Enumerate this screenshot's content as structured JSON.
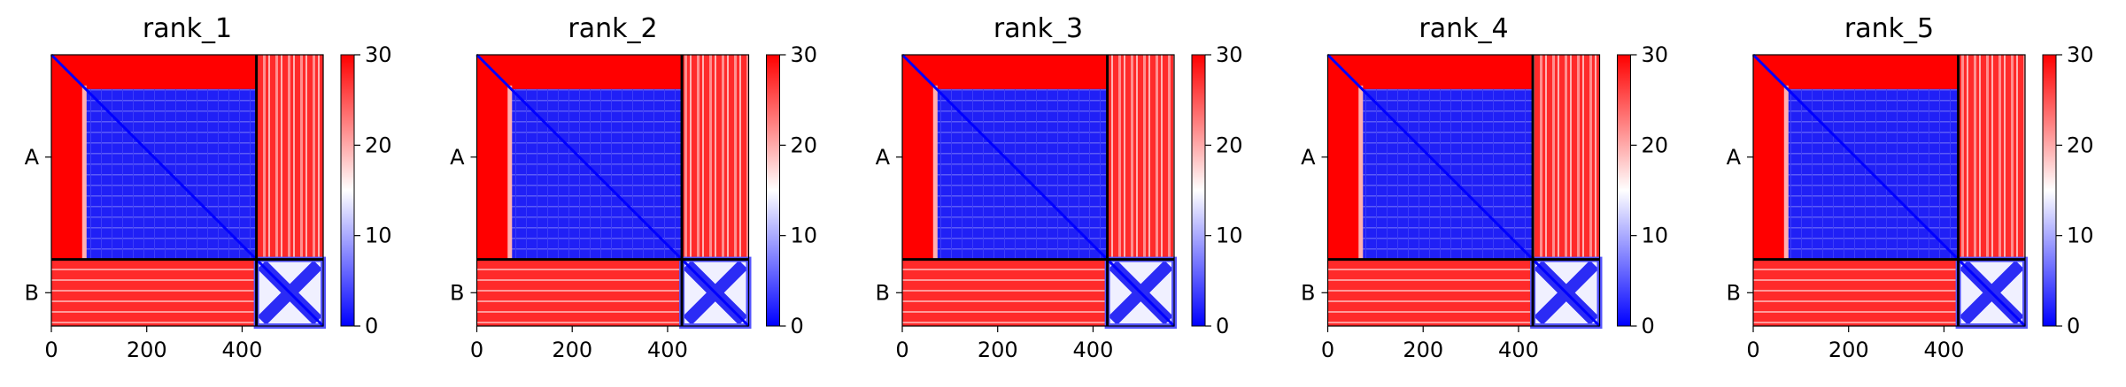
{
  "chart_data": [
    {
      "type": "heatmap",
      "title": "rank_1",
      "chain_labels": [
        "A",
        "B"
      ],
      "chain_boundaries": [
        0,
        430,
        570
      ],
      "xlim": [
        0,
        570
      ],
      "x_ticks": [
        0,
        200,
        400
      ],
      "colorbar": {
        "min": 0,
        "max": 30,
        "ticks": [
          0,
          10,
          20,
          30
        ]
      }
    },
    {
      "type": "heatmap",
      "title": "rank_2",
      "chain_labels": [
        "A",
        "B"
      ],
      "chain_boundaries": [
        0,
        430,
        570
      ],
      "xlim": [
        0,
        570
      ],
      "x_ticks": [
        0,
        200,
        400
      ],
      "colorbar": {
        "min": 0,
        "max": 30,
        "ticks": [
          0,
          10,
          20,
          30
        ]
      }
    },
    {
      "type": "heatmap",
      "title": "rank_3",
      "chain_labels": [
        "A",
        "B"
      ],
      "chain_boundaries": [
        0,
        430,
        570
      ],
      "xlim": [
        0,
        570
      ],
      "x_ticks": [
        0,
        200,
        400
      ],
      "colorbar": {
        "min": 0,
        "max": 30,
        "ticks": [
          0,
          10,
          20,
          30
        ]
      }
    },
    {
      "type": "heatmap",
      "title": "rank_4",
      "chain_labels": [
        "A",
        "B"
      ],
      "chain_boundaries": [
        0,
        430,
        570
      ],
      "xlim": [
        0,
        570
      ],
      "x_ticks": [
        0,
        200,
        400
      ],
      "colorbar": {
        "min": 0,
        "max": 30,
        "ticks": [
          0,
          10,
          20,
          30
        ]
      }
    },
    {
      "type": "heatmap",
      "title": "rank_5",
      "chain_labels": [
        "A",
        "B"
      ],
      "chain_boundaries": [
        0,
        430,
        570
      ],
      "xlim": [
        0,
        570
      ],
      "x_ticks": [
        0,
        200,
        400
      ],
      "colorbar": {
        "min": 0,
        "max": 30,
        "ticks": [
          0,
          10,
          20,
          30
        ]
      }
    }
  ],
  "colors": {
    "low": "#0000ff",
    "mid": "#ffffff",
    "high": "#ff0000"
  }
}
